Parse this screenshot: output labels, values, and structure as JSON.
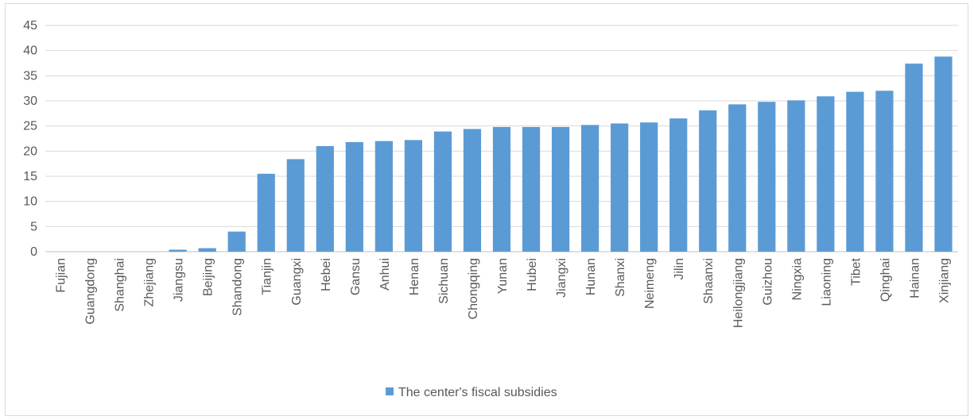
{
  "chart_data": {
    "type": "bar",
    "categories": [
      "Fujian",
      "Guangdong",
      "Shanghai",
      "Zhejiang",
      "Jiangsu",
      "Beijing",
      "Shandong",
      "Tianjin",
      "Guangxi",
      "Hebei",
      "Gansu",
      "Anhui",
      "Henan",
      "Sichuan",
      "Chongqing",
      "Yunan",
      "Hubei",
      "Jiangxi",
      "Hunan",
      "Shanxi",
      "Neimeng",
      "Jilin",
      "Shaanxi",
      "Heilongjiang",
      "Guizhou",
      "Ningxia",
      "Liaoning",
      "Tibet",
      "Qinghai",
      "Hainan",
      "Xinjiang"
    ],
    "series": [
      {
        "name": "The center's fiscal subsidies",
        "color": "#5b9bd5",
        "values": [
          0,
          0,
          0,
          0,
          0.4,
          0.7,
          4.0,
          15.5,
          18.4,
          21.0,
          21.8,
          22.0,
          22.2,
          23.9,
          24.4,
          24.8,
          24.8,
          24.8,
          25.2,
          25.5,
          25.7,
          26.5,
          28.1,
          29.3,
          29.8,
          30.1,
          30.9,
          31.8,
          32.0,
          37.4,
          38.8
        ]
      }
    ],
    "title": "",
    "xlabel": "",
    "ylabel": "",
    "ylim": [
      0,
      45
    ],
    "yticks": [
      "0",
      "5",
      "10",
      "15",
      "20",
      "25",
      "30",
      "35",
      "40",
      "45"
    ],
    "grid": "horizontal",
    "legend": "bottom-center",
    "colors": {
      "bar": "#5b9bd5",
      "grid": "#d9d9d9",
      "text": "#595959"
    }
  }
}
